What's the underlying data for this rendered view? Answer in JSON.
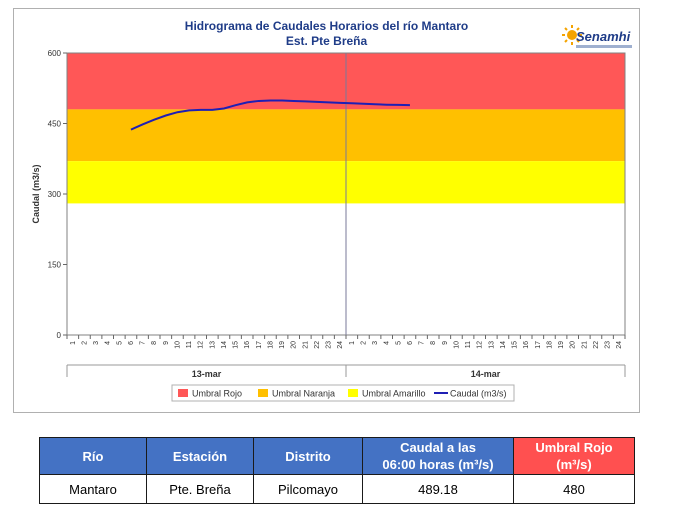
{
  "chart_data": {
    "type": "line",
    "title": "Hidrograma de Caudales Horarios del río Mantaro",
    "subtitle": "Est. Pte Breña",
    "ylabel": "Caudal  (m3/s)",
    "ylim": [
      0,
      600
    ],
    "yticks": [
      "0",
      "150",
      "300",
      "450",
      "600"
    ],
    "xtick_labels": [
      "1",
      "2",
      "3",
      "4",
      "5",
      "6",
      "7",
      "8",
      "9",
      "10",
      "11",
      "12",
      "13",
      "14",
      "15",
      "16",
      "17",
      "18",
      "19",
      "20",
      "21",
      "22",
      "23",
      "24",
      "1",
      "2",
      "3",
      "4",
      "5",
      "6",
      "7",
      "8",
      "9",
      "10",
      "11",
      "12",
      "13",
      "14",
      "15",
      "16",
      "17",
      "18",
      "19",
      "20",
      "21",
      "22",
      "23",
      "24"
    ],
    "days": [
      "13-mar",
      "14-mar"
    ],
    "bands": [
      {
        "name": "Umbral Rojo",
        "from": 480,
        "to": 600,
        "color": "#ff5757"
      },
      {
        "name": "Umbral Naranja",
        "from": 370,
        "to": 480,
        "color": "#ffc000"
      },
      {
        "name": "Umbral Amarillo",
        "from": 280,
        "to": 370,
        "color": "#ffff00"
      }
    ],
    "series": [
      {
        "name": "Caudal (m3/s)",
        "color": "#1f1fb4",
        "x": [
          6,
          7,
          8,
          9,
          10,
          11,
          12,
          13,
          14,
          15,
          16,
          17,
          18,
          19,
          20,
          21,
          22,
          23,
          24,
          25,
          26,
          27,
          28,
          29,
          30
        ],
        "y": [
          437,
          448,
          458,
          467,
          474,
          478,
          479,
          479,
          482,
          489,
          495,
          498,
          499,
          499,
          498,
          497,
          496,
          495,
          494,
          493,
          492,
          491,
          490,
          489.5,
          489.18
        ]
      }
    ],
    "legend": [
      "Umbral Rojo",
      "Umbral Naranja",
      "Umbral Amarillo",
      "Caudal (m3/s)"
    ],
    "legend_position": "bottom",
    "grid": false
  },
  "logo": {
    "text": "Senamhi"
  },
  "table": {
    "headers": {
      "rio": "Río",
      "estacion": "Estación",
      "distrito": "Distrito",
      "caudal_line1": "Caudal a las",
      "caudal_line2": "06:00 horas (m³/s)",
      "umbral_line1": "Umbral Rojo",
      "umbral_line2": "(m³/s)"
    },
    "row": {
      "rio": "Mantaro",
      "estacion": "Pte. Breña",
      "distrito": "Pilcomayo",
      "caudal": "489.18",
      "umbral": "480"
    }
  }
}
